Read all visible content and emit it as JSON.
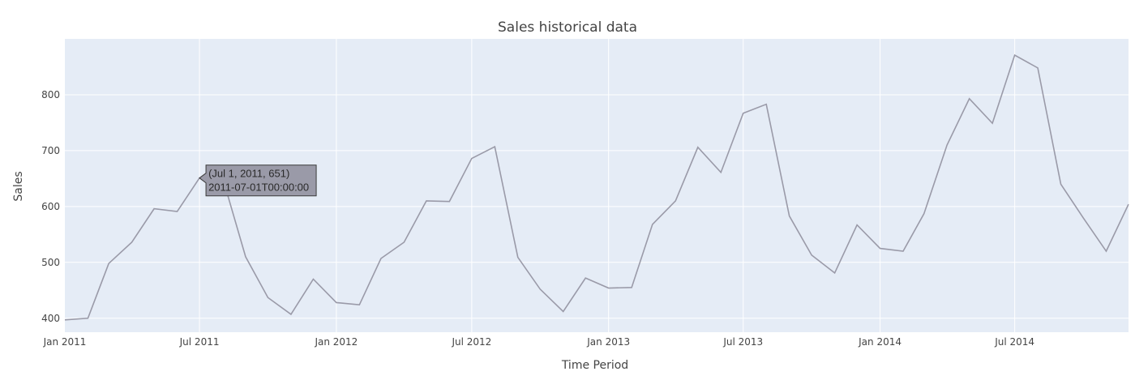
{
  "chart_data": {
    "type": "line",
    "title": "Sales historical data",
    "xlabel": "Time Period",
    "ylabel": "Sales",
    "x": [
      "2011-01-01",
      "2011-02-01",
      "2011-03-01",
      "2011-04-01",
      "2011-05-01",
      "2011-06-01",
      "2011-07-01",
      "2011-08-01",
      "2011-09-01",
      "2011-10-01",
      "2011-11-01",
      "2011-12-01",
      "2012-01-01",
      "2012-02-01",
      "2012-03-01",
      "2012-04-01",
      "2012-05-01",
      "2012-06-01",
      "2012-07-01",
      "2012-08-01",
      "2012-09-01",
      "2012-10-01",
      "2012-11-01",
      "2012-12-01",
      "2013-01-01",
      "2013-02-01",
      "2013-03-01",
      "2013-04-01",
      "2013-05-01",
      "2013-06-01",
      "2013-07-01",
      "2013-08-01",
      "2013-09-01",
      "2013-10-01",
      "2013-11-01",
      "2013-12-01",
      "2014-01-01",
      "2014-02-01",
      "2014-03-01",
      "2014-04-01",
      "2014-05-01",
      "2014-06-01",
      "2014-07-01",
      "2014-08-01",
      "2014-09-01",
      "2014-10-01",
      "2014-11-01",
      "2014-12-01"
    ],
    "series": [
      {
        "values": [
          397,
          400,
          498,
          536,
          596,
          591,
          651,
          652,
          510,
          437,
          407,
          470,
          428,
          424,
          507,
          536,
          610,
          609,
          686,
          707,
          509,
          452,
          412,
          472,
          454,
          455,
          568,
          610,
          706,
          661,
          767,
          783,
          583,
          513,
          481,
          567,
          525,
          520,
          587,
          710,
          793,
          749,
          871,
          848,
          640,
          580,
          520,
          604
        ]
      }
    ],
    "xlim": [
      "2011-01-01",
      "2014-12-01"
    ],
    "ylim": [
      375,
      900
    ],
    "x_ticks": [
      "Jan 2011",
      "Jul 2011",
      "Jan 2012",
      "Jul 2012",
      "Jan 2013",
      "Jul 2013",
      "Jan 2014",
      "Jul 2014"
    ],
    "y_ticks": [
      "400",
      "500",
      "600",
      "700",
      "800"
    ],
    "grid": true,
    "line_color": "#9a9aa8",
    "plot_bg": "#e5ecf6",
    "hover": {
      "x": "2011-07-01",
      "y": 651,
      "line1": "(Jul 1, 2011, 651)",
      "line2": "2011-07-01T00:00:00"
    }
  }
}
